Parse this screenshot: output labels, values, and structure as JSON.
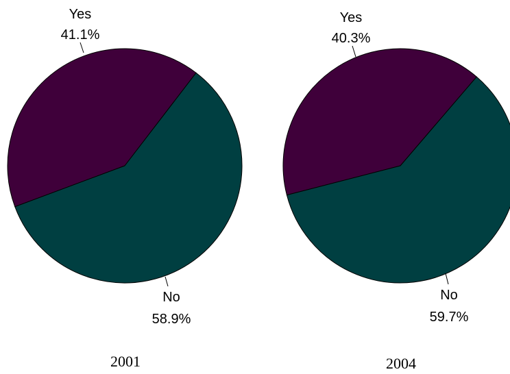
{
  "chart_data": [
    {
      "type": "pie",
      "title": "2001",
      "labels": [
        "Yes",
        "No"
      ],
      "values": [
        41.1,
        58.9
      ],
      "percent_labels": [
        "41.1%",
        "58.9%"
      ],
      "colors": [
        "#3f003a",
        "#003f41"
      ]
    },
    {
      "type": "pie",
      "title": "2004",
      "labels": [
        "Yes",
        "No"
      ],
      "values": [
        40.3,
        59.7
      ],
      "percent_labels": [
        "40.3%",
        "59.7%"
      ],
      "colors": [
        "#3f003a",
        "#003f41"
      ]
    }
  ]
}
